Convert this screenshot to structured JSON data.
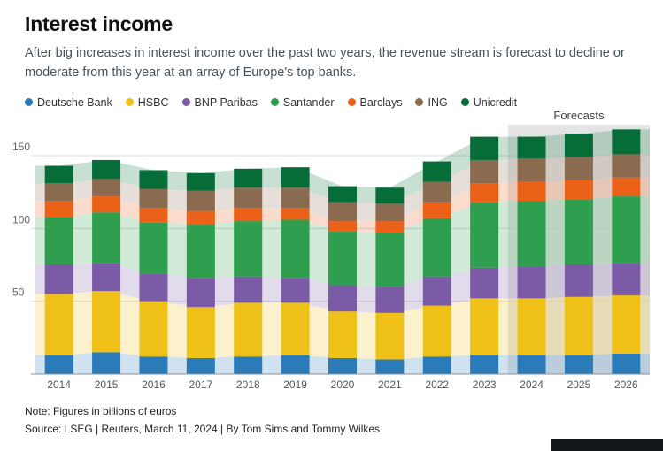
{
  "title": "Interest income",
  "subtitle": "After big increases in interest income over the past two years, the revenue stream is forecast to decline or moderate from this year at an array of Europe's top banks.",
  "forecast_label": "Forecasts",
  "note": "Note: Figures in billions of euros",
  "source": "Source: LSEG | Reuters, March 11, 2024 | By Tom Sims and Tommy Wilkes",
  "colors": {
    "forecast_band": "#e4e4e4",
    "gridline": "#d8d8d8",
    "baseline": "#8f8f8f",
    "tick_text": "#666666",
    "axis_text": "#555555",
    "forecast_text": "#444444"
  },
  "chart_data": {
    "type": "bar",
    "stacked": true,
    "background_area": true,
    "title": "Interest income",
    "xlabel": "",
    "ylabel": "",
    "units": "billions of euros",
    "categories": [
      "2014",
      "2015",
      "2016",
      "2017",
      "2018",
      "2019",
      "2020",
      "2021",
      "2022",
      "2023",
      "2024",
      "2025",
      "2026"
    ],
    "yticks": [
      50,
      100,
      150
    ],
    "ylim": [
      0,
      170
    ],
    "legend_position": "top",
    "forecast_years": [
      "2024",
      "2025",
      "2026"
    ],
    "series": [
      {
        "name": "Deutsche Bank",
        "color": "#2b7bb9",
        "values": [
          13,
          15,
          12,
          11,
          12,
          13,
          11,
          10,
          12,
          13,
          13,
          13,
          14
        ]
      },
      {
        "name": "HSBC",
        "color": "#efc118",
        "values": [
          42,
          42,
          38,
          35,
          37,
          36,
          32,
          32,
          35,
          39,
          39,
          40,
          40
        ]
      },
      {
        "name": "BNP Paribas",
        "color": "#7b5aa6",
        "values": [
          20,
          19,
          19,
          20,
          18,
          17,
          18,
          18,
          20,
          21,
          22,
          22,
          22
        ]
      },
      {
        "name": "Santander",
        "color": "#2f9e4f",
        "values": [
          33,
          35,
          35,
          37,
          38,
          40,
          37,
          37,
          40,
          45,
          45,
          45,
          46
        ]
      },
      {
        "name": "Barclays",
        "color": "#ec6118",
        "values": [
          11,
          11,
          10,
          9,
          9,
          8,
          7,
          8,
          11,
          13,
          13,
          13,
          13
        ]
      },
      {
        "name": "ING",
        "color": "#8a6b50",
        "values": [
          12,
          12,
          13,
          14,
          14,
          14,
          13,
          12,
          14,
          16,
          16,
          16,
          16
        ]
      },
      {
        "name": "Unicredit",
        "color": "#066d38",
        "values": [
          12,
          13,
          13,
          12,
          13,
          14,
          11,
          11,
          14,
          16,
          15,
          16,
          17
        ]
      }
    ],
    "totals": [
      143,
      147,
      140,
      138,
      141,
      142,
      129,
      128,
      146,
      163,
      163,
      165,
      168
    ]
  }
}
